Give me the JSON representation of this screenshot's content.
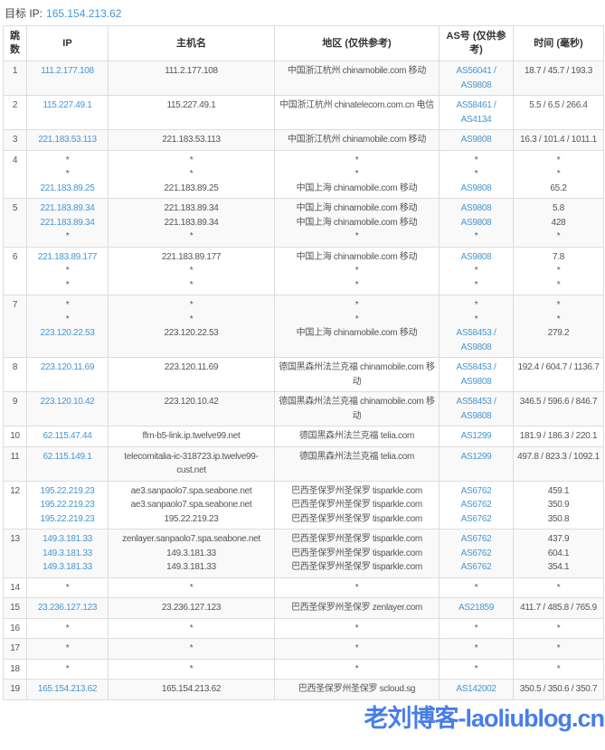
{
  "target": {
    "label": "目标 IP:",
    "ip": "165.154.213.62"
  },
  "colors": {
    "link": "#4596d3",
    "watermark": "#2e6de5",
    "border": "#dddddd",
    "stripe": "#f9f9f9",
    "text": "#555555"
  },
  "watermark": {
    "text": "老刘博客-laoliublog.cn"
  },
  "table": {
    "headers": [
      {
        "id": "hop",
        "label": "跳数"
      },
      {
        "id": "ip",
        "label": "IP"
      },
      {
        "id": "host",
        "label": "主机名"
      },
      {
        "id": "region",
        "label": "地区 (仅供参考)"
      },
      {
        "id": "asn",
        "label": "AS号 (仅供参考)"
      },
      {
        "id": "time",
        "label": "时间 (毫秒)"
      }
    ],
    "rows": [
      {
        "hop": "1",
        "ip": [
          "111.2.177.108"
        ],
        "host": [
          "111.2.177.108"
        ],
        "region": [
          "中国浙江杭州 chinamobile.com 移动"
        ],
        "asn": [
          "AS56041 / AS9808"
        ],
        "time": [
          "18.7 / 45.7 / 193.3"
        ]
      },
      {
        "hop": "2",
        "ip": [
          "115.227.49.1"
        ],
        "host": [
          "115.227.49.1"
        ],
        "region": [
          "中国浙江杭州 chinatelecom.com.cn 电信"
        ],
        "asn": [
          "AS58461 / AS4134"
        ],
        "time": [
          "5.5 / 6.5 / 266.4"
        ]
      },
      {
        "hop": "3",
        "ip": [
          "221.183.53.113"
        ],
        "host": [
          "221.183.53.113"
        ],
        "region": [
          "中国浙江杭州 chinamobile.com 移动"
        ],
        "asn": [
          "AS9808"
        ],
        "time": [
          "16.3 / 101.4 / 1011.1"
        ]
      },
      {
        "hop": "4",
        "ip": [
          "*",
          "*",
          "221.183.89.25"
        ],
        "host": [
          "*",
          "*",
          "221.183.89.25"
        ],
        "region": [
          "*",
          "*",
          "中国上海 chinamobile.com 移动"
        ],
        "asn": [
          "*",
          "*",
          "AS9808"
        ],
        "time": [
          "*",
          "*",
          "65.2"
        ]
      },
      {
        "hop": "5",
        "ip": [
          "221.183.89.34",
          "221.183.89.34",
          "*"
        ],
        "host": [
          "221.183.89.34",
          "221.183.89.34",
          "*"
        ],
        "region": [
          "中国上海 chinamobile.com 移动",
          "中国上海 chinamobile.com 移动",
          "*"
        ],
        "asn": [
          "AS9808",
          "AS9808",
          "*"
        ],
        "time": [
          "5.8",
          "428",
          "*"
        ]
      },
      {
        "hop": "6",
        "ip": [
          "221.183.89.177",
          "*",
          "*"
        ],
        "host": [
          "221.183.89.177",
          "*",
          "*"
        ],
        "region": [
          "中国上海 chinamobile.com 移动",
          "*",
          "*"
        ],
        "asn": [
          "AS9808",
          "*",
          "*"
        ],
        "time": [
          "7.8",
          "*",
          "*"
        ]
      },
      {
        "hop": "7",
        "ip": [
          "*",
          "*",
          "223.120.22.53"
        ],
        "host": [
          "*",
          "*",
          "223.120.22.53"
        ],
        "region": [
          "*",
          "*",
          "中国上海 chinamobile.com 移动"
        ],
        "asn": [
          "*",
          "*",
          "AS58453 / AS9808"
        ],
        "time": [
          "*",
          "*",
          "279.2"
        ]
      },
      {
        "hop": "8",
        "ip": [
          "223.120.11.69"
        ],
        "host": [
          "223.120.11.69"
        ],
        "region": [
          "德国黑森州法兰克福 chinamobile.com 移动"
        ],
        "asn": [
          "AS58453 / AS9808"
        ],
        "time": [
          "192.4 / 604.7 / 1136.7"
        ]
      },
      {
        "hop": "9",
        "ip": [
          "223.120.10.42"
        ],
        "host": [
          "223.120.10.42"
        ],
        "region": [
          "德国黑森州法兰克福 chinamobile.com 移动"
        ],
        "asn": [
          "AS58453 / AS9808"
        ],
        "time": [
          "346.5 / 596.6 / 846.7"
        ]
      },
      {
        "hop": "10",
        "ip": [
          "62.115.47.44"
        ],
        "host": [
          "ffm-b5-link.ip.twelve99.net"
        ],
        "region": [
          "德国黑森州法兰克福 telia.com"
        ],
        "asn": [
          "AS1299"
        ],
        "time": [
          "181.9 / 186.3 / 220.1"
        ]
      },
      {
        "hop": "11",
        "ip": [
          "62.115.149.1"
        ],
        "host": [
          "telecomitalia-ic-318723.ip.twelve99-cust.net"
        ],
        "region": [
          "德国黑森州法兰克福 telia.com"
        ],
        "asn": [
          "AS1299"
        ],
        "time": [
          "497.8 / 823.3 / 1092.1"
        ]
      },
      {
        "hop": "12",
        "ip": [
          "195.22.219.23",
          "195.22.219.23",
          "195.22.219.23"
        ],
        "host": [
          "ae3.sanpaolo7.spa.seabone.net",
          "ae3.sanpaolo7.spa.seabone.net",
          "195.22.219.23"
        ],
        "region": [
          "巴西圣保罗州圣保罗 tisparkle.com",
          "巴西圣保罗州圣保罗 tisparkle.com",
          "巴西圣保罗州圣保罗 tisparkle.com"
        ],
        "asn": [
          "AS6762",
          "AS6762",
          "AS6762"
        ],
        "time": [
          "459.1",
          "350.9",
          "350.8"
        ]
      },
      {
        "hop": "13",
        "ip": [
          "149.3.181.33",
          "149.3.181.33",
          "149.3.181.33"
        ],
        "host": [
          "zenlayer.sanpaolo7.spa.seabone.net",
          "149.3.181.33",
          "149.3.181.33"
        ],
        "region": [
          "巴西圣保罗州圣保罗 tisparkle.com",
          "巴西圣保罗州圣保罗 tisparkle.com",
          "巴西圣保罗州圣保罗 tisparkle.com"
        ],
        "asn": [
          "AS6762",
          "AS6762",
          "AS6762"
        ],
        "time": [
          "437.9",
          "604.1",
          "354.1"
        ]
      },
      {
        "hop": "14",
        "ip": [
          "*"
        ],
        "host": [
          "*"
        ],
        "region": [
          "*"
        ],
        "asn": [
          "*"
        ],
        "time": [
          "*"
        ]
      },
      {
        "hop": "15",
        "ip": [
          "23.236.127.123"
        ],
        "host": [
          "23.236.127.123"
        ],
        "region": [
          "巴西圣保罗州圣保罗 zenlayer.com"
        ],
        "asn": [
          "AS21859"
        ],
        "time": [
          "411.7 / 485.8 / 765.9"
        ]
      },
      {
        "hop": "16",
        "ip": [
          "*"
        ],
        "host": [
          "*"
        ],
        "region": [
          "*"
        ],
        "asn": [
          "*"
        ],
        "time": [
          "*"
        ]
      },
      {
        "hop": "17",
        "ip": [
          "*"
        ],
        "host": [
          "*"
        ],
        "region": [
          "*"
        ],
        "asn": [
          "*"
        ],
        "time": [
          "*"
        ]
      },
      {
        "hop": "18",
        "ip": [
          "*"
        ],
        "host": [
          "*"
        ],
        "region": [
          "*"
        ],
        "asn": [
          "*"
        ],
        "time": [
          "*"
        ]
      },
      {
        "hop": "19",
        "ip": [
          "165.154.213.62"
        ],
        "host": [
          "165.154.213.62"
        ],
        "region": [
          "巴西圣保罗州圣保罗 scloud.sg"
        ],
        "asn": [
          "AS142002"
        ],
        "time": [
          "350.5 / 350.6 / 350.7"
        ]
      }
    ]
  }
}
